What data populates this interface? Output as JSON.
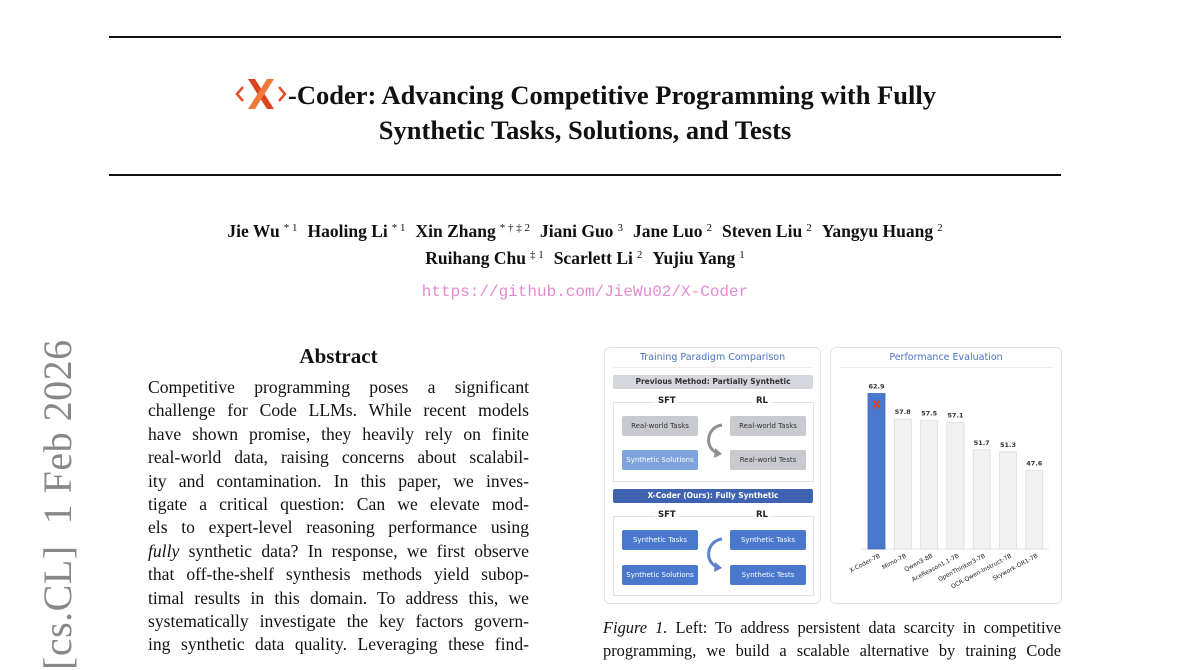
{
  "header": {
    "title_line1": "-Coder: Advancing Competitive Programming with Fully",
    "title_line2": "Synthetic Tasks, Solutions, and Tests",
    "logo_text": "X"
  },
  "authors": [
    {
      "name": "Jie Wu",
      "affil": "* 1"
    },
    {
      "name": "Haoling Li",
      "affil": "* 1"
    },
    {
      "name": "Xin Zhang",
      "affil": "* † ‡ 2"
    },
    {
      "name": "Jiani Guo",
      "affil": "3"
    },
    {
      "name": "Jane Luo",
      "affil": "2"
    },
    {
      "name": "Steven Liu",
      "affil": "2"
    },
    {
      "name": "Yangyu Huang",
      "affil": "2"
    },
    {
      "name": "Ruihang Chu",
      "affil": "‡ 1"
    },
    {
      "name": "Scarlett Li",
      "affil": "2"
    },
    {
      "name": "Yujiu Yang",
      "affil": "1"
    }
  ],
  "url": "https://github.com/JieWu02/X-Coder",
  "arxiv_stamp": "[cs.CL]  1 Feb 2026",
  "abstract": {
    "heading": "Abstract",
    "lines": [
      "Competitive programming poses a significant",
      "challenge for Code LLMs. While recent models",
      "have shown promise, they heavily rely on finite",
      "real-world data, raising concerns about scalabil-",
      "ity and contamination. In this paper, we inves-",
      "tigate a critical question: Can we elevate mod-",
      "els to expert-level reasoning performance using",
      "synthetic data? In response, we first observe",
      "that off-the-shelf synthesis methods yield subop-",
      "timal results in this domain. To address this, we",
      "systematically investigate the key factors govern-",
      "ing synthetic data quality. Leveraging these find-"
    ],
    "line8_italic": "fully"
  },
  "figure": {
    "left": {
      "title": "Training Paradigm Comparison",
      "previous_header": "Previous Method: Partially Synthetic",
      "ours_header": "X-Coder (Ours): Fully Synthetic",
      "sft": "SFT",
      "rl": "RL",
      "previous": {
        "sft": [
          "Real-world Tasks",
          "Synthetic Solutions"
        ],
        "rl": [
          "Real-world Tasks",
          "Real-world Tests"
        ]
      },
      "ours": {
        "sft": [
          "Synthetic Tasks",
          "Synthetic Solutions"
        ],
        "rl": [
          "Synthetic Tasks",
          "Synthetic Tests"
        ]
      }
    },
    "caption_label": "Figure 1.",
    "caption_lines": [
      "Left: To address persistent data scarcity in competitive",
      "programming, we build a scalable alternative by training Code"
    ]
  },
  "chart_data": {
    "type": "bar",
    "title": "Performance Evaluation",
    "categories": [
      "X-Coder-7B",
      "Mimo-7B",
      "Qwen3-8B",
      "AceReason1.1-7B",
      "OpenThinker3-7B",
      "OCR-Qwen-Instruct-7B",
      "Skywork-OR1-7B"
    ],
    "values": [
      62.9,
      57.8,
      57.5,
      57.1,
      51.7,
      51.3,
      47.6
    ],
    "data_labels": [
      "62.9",
      "57.8",
      "57.5",
      "57.1",
      "51.7",
      "51.3",
      "47.6"
    ],
    "ylim": [
      32,
      63
    ],
    "grid": false,
    "colors": {
      "highlight": "#4a78cc",
      "others": "#f2f2f2",
      "others_border": "#dcdcdc"
    }
  },
  "colors": {
    "accent_blue": "#4a72c0",
    "url_pink": "#e48ad0",
    "logo": "#e0502a"
  }
}
